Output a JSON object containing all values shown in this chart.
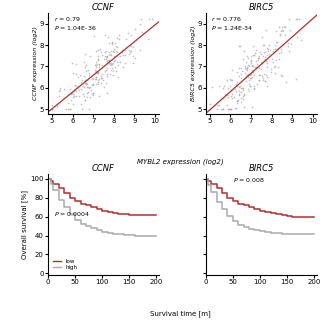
{
  "scatter1": {
    "title": "CCNF",
    "r": 0.79,
    "p": "1.04E-36",
    "ylabel": "CCNF expression (log2)",
    "xlim": [
      4.8,
      10.2
    ],
    "ylim": [
      4.8,
      9.5
    ],
    "xticks": [
      5,
      6,
      7,
      8,
      9,
      10
    ],
    "yticks": [
      5,
      6,
      7,
      8,
      9
    ],
    "line_color": "#b03030",
    "dot_color": "#999999"
  },
  "scatter2": {
    "title": "BIRC5",
    "r": 0.776,
    "p": "1.24E-34",
    "ylabel": "BIRC5 expression (log2)",
    "xlim": [
      4.8,
      10.2
    ],
    "ylim": [
      4.8,
      9.5
    ],
    "xticks": [
      5,
      6,
      7,
      8,
      9,
      10
    ],
    "yticks": [
      5,
      6,
      7,
      8,
      9
    ],
    "line_color": "#b03030",
    "dot_color": "#999999"
  },
  "km1": {
    "title": "CCNF",
    "p": "0.0004",
    "ylabel": "Overall survival [%]",
    "xlim": [
      0,
      205
    ],
    "ylim": [
      -2,
      105
    ],
    "xticks": [
      0,
      50,
      100,
      150,
      200
    ],
    "yticks": [
      0,
      20,
      40,
      60,
      80,
      100
    ],
    "low_color": "#b03030",
    "high_color": "#aaaaaa"
  },
  "km2": {
    "title": "BIRC5",
    "p": "0.008",
    "ylabel": "",
    "xlim": [
      0,
      205
    ],
    "ylim": [
      -2,
      105
    ],
    "xticks": [
      0,
      50,
      100,
      150,
      200
    ],
    "yticks": [
      0,
      20,
      40,
      60,
      80,
      100
    ],
    "low_color": "#b03030",
    "high_color": "#aaaaaa"
  },
  "shared_xlabel": "MYBL2 expression (log2)",
  "shared_survival_xlabel": "Survival time [m]"
}
